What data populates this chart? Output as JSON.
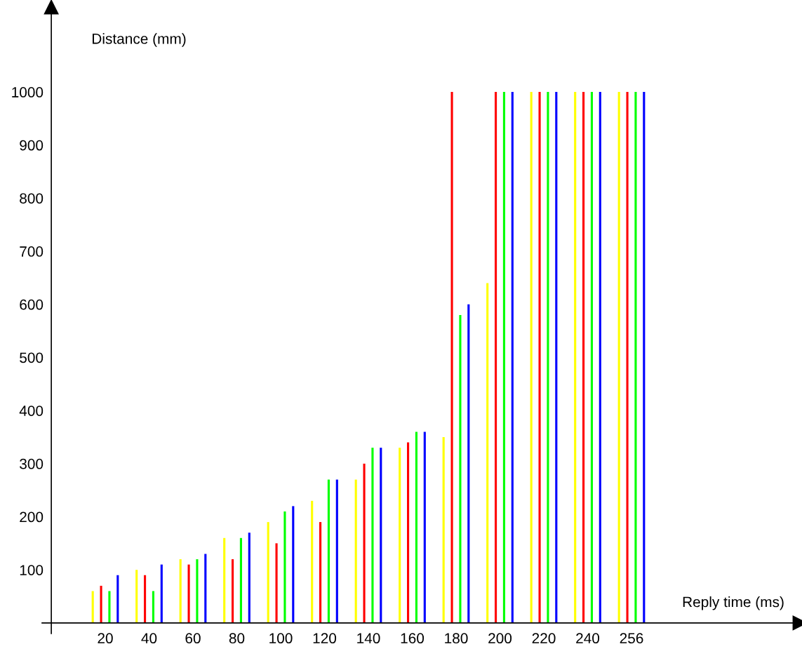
{
  "chart_data": {
    "type": "bar",
    "xlabel": "Reply time (ms)",
    "ylabel": "Distance (mm)",
    "categories": [
      "20",
      "40",
      "60",
      "80",
      "100",
      "120",
      "140",
      "160",
      "180",
      "200",
      "220",
      "240",
      "256"
    ],
    "series": [
      {
        "color": "#ffff00",
        "values": [
          60,
          100,
          120,
          160,
          190,
          230,
          270,
          330,
          350,
          640,
          1000,
          1000,
          1000
        ]
      },
      {
        "color": "#ff0000",
        "values": [
          70,
          90,
          110,
          120,
          150,
          190,
          300,
          340,
          1000,
          1000,
          1000,
          1000,
          1000
        ]
      },
      {
        "color": "#00ff00",
        "values": [
          60,
          60,
          120,
          160,
          210,
          270,
          330,
          360,
          580,
          1000,
          1000,
          1000,
          1000
        ]
      },
      {
        "color": "#0000ff",
        "values": [
          90,
          110,
          130,
          170,
          220,
          270,
          330,
          360,
          600,
          1000,
          1000,
          1000,
          1000
        ]
      }
    ],
    "ylim": [
      -20,
      1160
    ],
    "yticks": [
      100,
      200,
      300,
      400,
      500,
      600,
      700,
      800,
      900,
      1000
    ],
    "grid": false,
    "legend": false
  }
}
